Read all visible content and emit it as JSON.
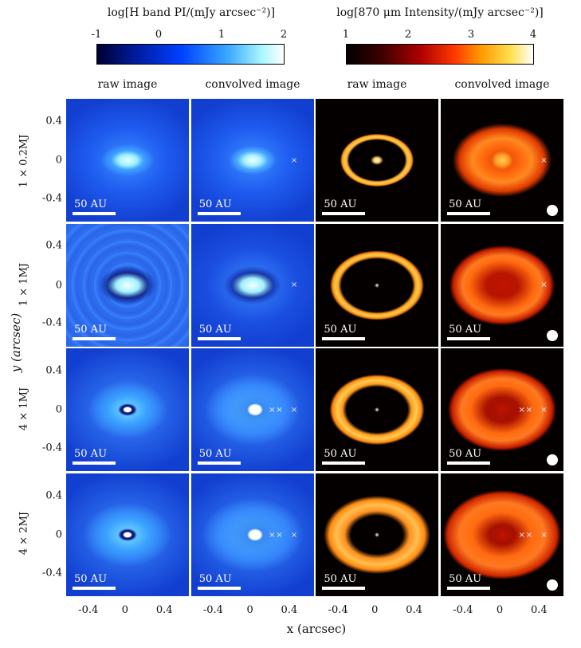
{
  "colorbars": {
    "h_band": {
      "title": "log[H band PI/(mJy arcsec⁻²)]",
      "ticks": [
        "-1",
        "0",
        "1",
        "2"
      ],
      "range": [
        -1,
        2
      ]
    },
    "mm": {
      "title": "log[870 μm Intensity/(mJy arcsec⁻²)]",
      "ticks": [
        "1",
        "2",
        "3",
        "4"
      ],
      "range": [
        1,
        4
      ]
    }
  },
  "column_titles": [
    "raw image",
    "convolved image",
    "raw image",
    "convolved image"
  ],
  "row_labels": [
    "1 × 0.2MJ",
    "1 × 1MJ",
    "4 × 1MJ",
    "4 × 2MJ"
  ],
  "y_ticks": [
    "0.4",
    "0",
    "-0.4"
  ],
  "x_ticks": [
    "-0.4",
    "0",
    "0.4"
  ],
  "x_label": "x (arcsec)",
  "y_label": "y (arcsec)",
  "scale_label": "50 AU",
  "colors": {
    "h_dark": "#0a2a8a",
    "h_mid": "#2f73ff",
    "h_bright": "#c8fbff",
    "mm_dark": "#050000",
    "mm_red": "#c81400",
    "mm_orange": "#ff7a10",
    "mm_yellow": "#ffd060",
    "marker": "#e8e8ff"
  }
}
